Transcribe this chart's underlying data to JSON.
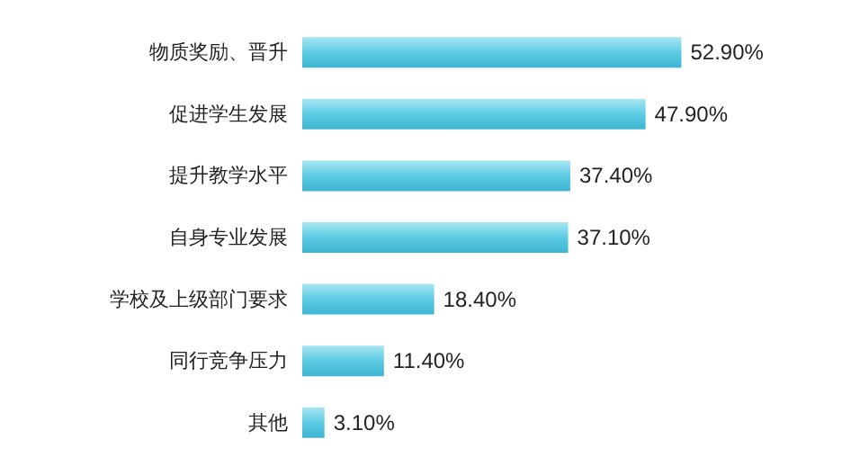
{
  "chart_data": {
    "type": "bar",
    "orientation": "horizontal",
    "categories": [
      "物质奖励、晋升",
      "促进学生发展",
      "提升教学水平",
      "自身专业发展",
      "学校及上级部门要求",
      "同行竞争压力",
      "其他"
    ],
    "values": [
      52.9,
      47.9,
      37.4,
      37.1,
      18.4,
      11.4,
      3.1
    ],
    "value_labels": [
      "52.90%",
      "47.90%",
      "37.40%",
      "37.10%",
      "18.40%",
      "11.40%",
      "3.10%"
    ],
    "color": "#5ccbe3"
  }
}
